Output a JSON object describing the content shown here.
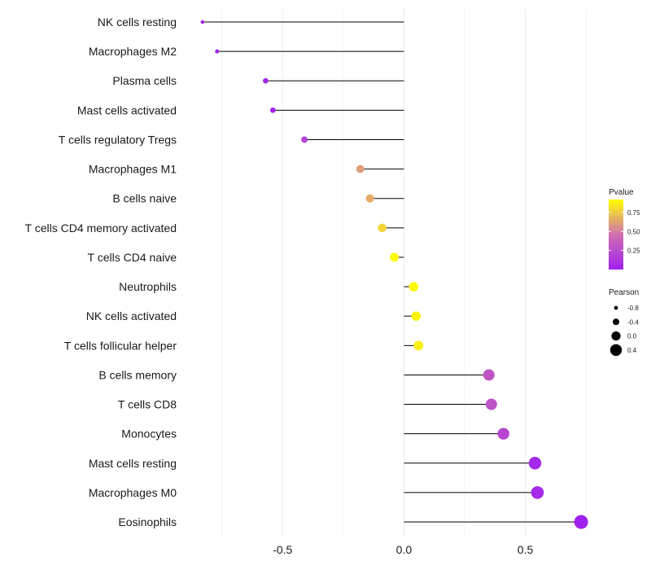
{
  "chart_data": {
    "type": "lollipop",
    "categories": [
      "NK cells resting",
      "Macrophages M2",
      "Plasma cells",
      "Mast cells activated",
      "T cells regulatory  Tregs",
      "Macrophages M1",
      "B cells naive",
      "T cells CD4 memory activated",
      "T cells CD4 naive",
      "Neutrophils",
      "NK cells activated",
      "T cells follicular helper",
      "B cells memory",
      "T cells CD8",
      "Monocytes",
      "Mast cells resting",
      "Macrophages M0",
      "Eosinophils"
    ],
    "pearson": [
      -0.83,
      -0.77,
      -0.57,
      -0.54,
      -0.41,
      -0.18,
      -0.14,
      -0.09,
      -0.04,
      0.04,
      0.05,
      0.06,
      0.35,
      0.36,
      0.41,
      0.54,
      0.55,
      0.73
    ],
    "pvalue": [
      0.01,
      0.01,
      0.04,
      0.04,
      0.2,
      0.6,
      0.65,
      0.78,
      0.9,
      0.9,
      0.88,
      0.87,
      0.3,
      0.3,
      0.22,
      0.05,
      0.05,
      0.001
    ],
    "xlim": [
      -0.9,
      0.8
    ],
    "xticks": [
      -0.5,
      0.0,
      0.5
    ],
    "xtick_labels": [
      "-0.5",
      "0.0",
      "0.5"
    ],
    "xlabel": "",
    "ylabel": "",
    "colors": {
      "low": "#a020f0",
      "mid": "#d070b0",
      "high": "#ffff00",
      "stem": "#000000",
      "grid": "#ebebeb"
    },
    "legend_color": {
      "title": "Pvalue",
      "ticks": [
        0.75,
        0.5,
        0.25
      ],
      "tick_labels": [
        "0.75",
        "0.50",
        "0.25"
      ],
      "range": [
        0.0,
        0.92
      ]
    },
    "legend_size": {
      "title": "Pearson",
      "values": [
        -0.8,
        -0.4,
        0.0,
        0.4
      ],
      "labels": [
        "-0.8",
        "-0.4",
        "0.0",
        "0.4"
      ]
    }
  }
}
